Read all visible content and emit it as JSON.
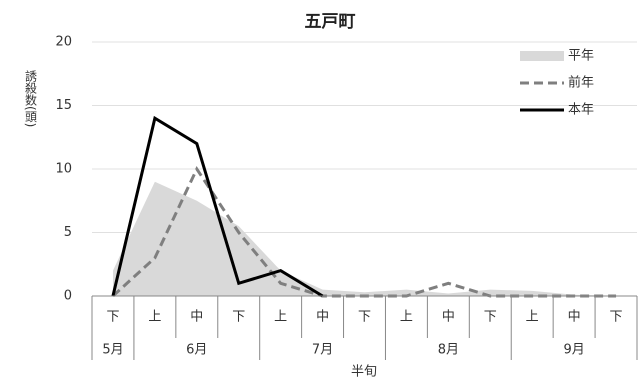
{
  "chart_data": {
    "type": "line",
    "title": "五戸町",
    "y_label": "誘殺数(頭)",
    "x_label": "半旬",
    "categories": [
      "下",
      "上",
      "中",
      "下",
      "上",
      "中",
      "下",
      "上",
      "中",
      "下",
      "上",
      "中",
      "下"
    ],
    "months": [
      "5月",
      "6月",
      null,
      null,
      "7月",
      null,
      null,
      "8月",
      null,
      null,
      "9月",
      null,
      null
    ],
    "series": [
      {
        "name": "平年",
        "style": "area",
        "color": "#d9d9d9",
        "values": [
          2,
          9,
          7.5,
          5.5,
          2,
          0.5,
          0.3,
          0.5,
          0.2,
          0.5,
          0.4,
          0.1,
          0
        ]
      },
      {
        "name": "前年",
        "style": "dashed",
        "color": "#7f7f7f",
        "values": [
          0,
          3,
          10,
          5,
          1,
          0,
          0,
          0,
          1,
          0,
          0,
          0,
          0
        ]
      },
      {
        "name": "本年",
        "style": "solid",
        "color": "#000000",
        "values": [
          0,
          14,
          12,
          1,
          2,
          0,
          null,
          null,
          null,
          null,
          null,
          null,
          null
        ]
      }
    ],
    "ylim": [
      0,
      20
    ],
    "yticks": [
      0,
      5,
      10,
      15,
      20
    ],
    "grid": true,
    "legend": "upper right"
  }
}
